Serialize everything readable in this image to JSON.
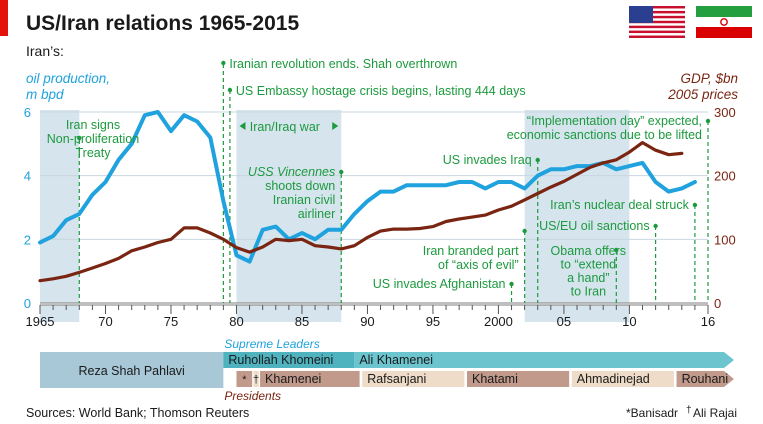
{
  "chart_data": {
    "type": "line",
    "title": "US/Iran relations 1965-2015",
    "subtitle": "Iran’s:",
    "left_axis": {
      "label1": "oil production,",
      "label2": "m bpd",
      "range": [
        0,
        6
      ],
      "ticks": [
        "0",
        "2",
        "4",
        "6"
      ]
    },
    "right_axis": {
      "label1": "GDP, $bn",
      "label2": "2005 prices",
      "range": [
        0,
        300
      ],
      "ticks": [
        "0",
        "100",
        "200",
        "300"
      ]
    },
    "x_range": [
      1965,
      2016
    ],
    "x_ticks": [
      {
        "year": 1965,
        "label": "1965"
      },
      {
        "year": 1970,
        "label": "70"
      },
      {
        "year": 1975,
        "label": "75"
      },
      {
        "year": 1980,
        "label": "80"
      },
      {
        "year": 1985,
        "label": "85"
      },
      {
        "year": 1990,
        "label": "90"
      },
      {
        "year": 1995,
        "label": "95"
      },
      {
        "year": 2000,
        "label": "2000"
      },
      {
        "year": 2005,
        "label": "05"
      },
      {
        "year": 2010,
        "label": "10"
      },
      {
        "year": 2016,
        "label": "16"
      }
    ],
    "series": [
      {
        "name": "oil production, m bpd",
        "color": "#1fa2dd",
        "axis": "left",
        "x": [
          1965,
          1966,
          1967,
          1968,
          1969,
          1970,
          1971,
          1972,
          1973,
          1974,
          1975,
          1976,
          1977,
          1978,
          1979,
          1980,
          1981,
          1982,
          1983,
          1984,
          1985,
          1986,
          1987,
          1988,
          1989,
          1990,
          1991,
          1992,
          1993,
          1994,
          1995,
          1996,
          1997,
          1998,
          1999,
          2000,
          2001,
          2002,
          2003,
          2004,
          2005,
          2006,
          2007,
          2008,
          2009,
          2010,
          2011,
          2012,
          2013,
          2014,
          2015
        ],
        "values": [
          1.9,
          2.1,
          2.6,
          2.8,
          3.4,
          3.8,
          4.5,
          5.0,
          5.9,
          6.0,
          5.4,
          5.9,
          5.7,
          5.2,
          3.2,
          1.5,
          1.3,
          2.3,
          2.4,
          2.0,
          2.2,
          2.0,
          2.3,
          2.3,
          2.8,
          3.2,
          3.5,
          3.5,
          3.7,
          3.7,
          3.7,
          3.7,
          3.8,
          3.8,
          3.6,
          3.8,
          3.8,
          3.6,
          4.0,
          4.2,
          4.2,
          4.3,
          4.3,
          4.4,
          4.2,
          4.3,
          4.4,
          3.8,
          3.5,
          3.6,
          3.8
        ]
      },
      {
        "name": "GDP, $bn 2005 prices",
        "color": "#7a2512",
        "axis": "right",
        "x": [
          1965,
          1966,
          1967,
          1968,
          1969,
          1970,
          1971,
          1972,
          1973,
          1974,
          1975,
          1976,
          1977,
          1978,
          1979,
          1980,
          1981,
          1982,
          1983,
          1984,
          1985,
          1986,
          1987,
          1988,
          1989,
          1990,
          1991,
          1992,
          1993,
          1994,
          1995,
          1996,
          1997,
          1998,
          1999,
          2000,
          2001,
          2002,
          2003,
          2004,
          2005,
          2006,
          2007,
          2008,
          2009,
          2010,
          2011,
          2012,
          2013,
          2014
        ],
        "values": [
          35,
          38,
          42,
          48,
          55,
          62,
          70,
          82,
          88,
          95,
          100,
          118,
          118,
          110,
          100,
          87,
          80,
          88,
          100,
          98,
          100,
          90,
          88,
          85,
          90,
          103,
          113,
          116,
          116,
          117,
          120,
          128,
          132,
          135,
          138,
          146,
          152,
          162,
          172,
          182,
          191,
          202,
          213,
          220,
          225,
          237,
          252,
          240,
          233,
          235
        ]
      }
    ],
    "shaded_periods": [
      {
        "from": 1965,
        "to": 1968
      },
      {
        "from": 1980,
        "to": 1988
      },
      {
        "from": 2002,
        "to": 2010
      }
    ],
    "annotations": [
      {
        "id": "npt",
        "year": 1968,
        "lines": [
          "Iran signs",
          "Non-proliferation",
          "Treaty"
        ],
        "italic": false
      },
      {
        "id": "rev",
        "year": 1979,
        "lines": [
          "Iranian revolution ends. Shah overthrown"
        ],
        "italic": false
      },
      {
        "id": "hostage",
        "year": 1979.5,
        "lines": [
          "US Embassy hostage crisis begins, lasting 444 days"
        ],
        "italic": false
      },
      {
        "id": "iraniraq",
        "year": 1984,
        "lines": [
          "Iran/Iraq war"
        ],
        "italic": false
      },
      {
        "id": "vincennes",
        "year": 1988,
        "lines": [
          "USS Vincennes",
          "shoots down",
          "Iranian civil",
          "airliner"
        ],
        "italic_first": true
      },
      {
        "id": "afghan",
        "year": 2001,
        "lines": [
          "US invades Afghanistan"
        ],
        "italic": false
      },
      {
        "id": "axis",
        "year": 2002,
        "lines": [
          "Iran branded part",
          "of “axis of evil”"
        ],
        "italic": false
      },
      {
        "id": "iraq",
        "year": 2003,
        "lines": [
          "US invades Iraq"
        ],
        "italic": false
      },
      {
        "id": "obama",
        "year": 2009,
        "lines": [
          "Obama offers",
          "to “extend",
          "a hand”",
          "to Iran"
        ],
        "italic": false
      },
      {
        "id": "sanctions",
        "year": 2012,
        "lines": [
          "US/EU oil sanctions"
        ],
        "italic": false
      },
      {
        "id": "impl",
        "year": 2016,
        "lines": [
          "“Implementation day” expected,",
          "economic sanctions due to be lifted"
        ],
        "italic": false
      },
      {
        "id": "deal",
        "year": 2015,
        "lines": [
          "Iran’s nuclear deal struck"
        ],
        "italic": false
      }
    ],
    "leaders": {
      "supreme_label": "Supreme Leaders",
      "presidents_label": "Presidents",
      "shah": {
        "label": "Reza Shah Pahlavi",
        "from": 1965,
        "to": 1979
      },
      "supreme": [
        {
          "label": "Ruhollah Khomeini",
          "from": 1979,
          "to": 1989
        },
        {
          "label": "Ali Khamenei",
          "from": 1989,
          "to": 2016
        }
      ],
      "presidents": [
        {
          "label": "*",
          "from": 1980,
          "to": 1981.2
        },
        {
          "label": "†",
          "from": 1981.3,
          "to": 1981.7
        },
        {
          "label": "Khamenei",
          "from": 1981.8,
          "to": 1989.4
        },
        {
          "label": "Rafsanjani",
          "from": 1989.6,
          "to": 1997.4
        },
        {
          "label": "Khatami",
          "from": 1997.6,
          "to": 2005.4
        },
        {
          "label": "Ahmadinejad",
          "from": 2005.6,
          "to": 2013.4
        },
        {
          "label": "Rouhani",
          "from": 2013.6,
          "to": 2016
        }
      ]
    },
    "sources": "Sources: World Bank; Thomson Reuters",
    "footnote1": "*Banisadr",
    "footnote2_mark": "†",
    "footnote2": "Ali Rajai",
    "colors": {
      "oil": "#1fa2dd",
      "gdp": "#7a2512",
      "annotation": "#1c9a3e",
      "shade": "#d6e4ee",
      "teal": "#5fbcc8",
      "brown": "#c19a8c",
      "sand": "#eedcc8",
      "title_rule": "#e3120b"
    }
  }
}
